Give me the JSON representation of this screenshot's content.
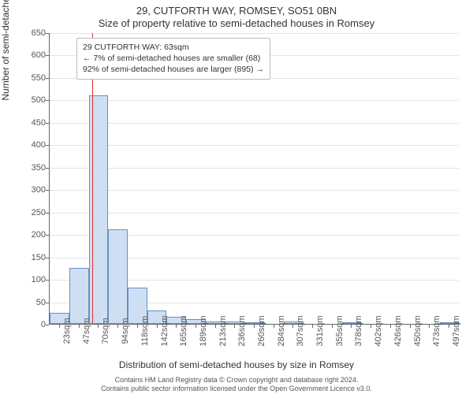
{
  "title_line1": "29, CUTFORTH WAY, ROMSEY, SO51 0BN",
  "title_line2": "Size of property relative to semi-detached houses in Romsey",
  "ylabel": "Number of semi-detached properties",
  "xlabel": "Distribution of semi-detached houses by size in Romsey",
  "footer_line1": "Contains HM Land Registry data © Crown copyright and database right 2024.",
  "footer_line2": "Contains public sector information licensed under the Open Government Licence v3.0.",
  "callout": {
    "line1": "29 CUTFORTH WAY: 63sqm",
    "line2": "← 7% of semi-detached houses are smaller (68)",
    "line3": "92% of semi-detached houses are larger (895) →"
  },
  "chart": {
    "type": "histogram",
    "background_color": "#ffffff",
    "grid_color": "#e5e5e5",
    "axis_color": "#666666",
    "bar_fill": "#cfdff3",
    "bar_border": "#6a8fc0",
    "marker_color": "#e03030",
    "marker_value": 63,
    "title_fontsize": 13,
    "label_fontsize": 12,
    "tick_fontsize": 11,
    "footer_fontsize": 9,
    "xlim": [
      11,
      509
    ],
    "ylim": [
      0,
      650
    ],
    "ytick_step": 50,
    "xticks": [
      23,
      47,
      70,
      94,
      118,
      142,
      165,
      189,
      213,
      236,
      260,
      284,
      307,
      331,
      355,
      378,
      402,
      426,
      450,
      473,
      497
    ],
    "xtick_suffix": "sqm",
    "bars": [
      {
        "x0": 11,
        "x1": 35,
        "y": 25
      },
      {
        "x0": 35,
        "x1": 59,
        "y": 125
      },
      {
        "x0": 59,
        "x1": 82,
        "y": 510
      },
      {
        "x0": 82,
        "x1": 106,
        "y": 210
      },
      {
        "x0": 106,
        "x1": 130,
        "y": 80
      },
      {
        "x0": 130,
        "x1": 153,
        "y": 30
      },
      {
        "x0": 153,
        "x1": 177,
        "y": 15
      },
      {
        "x0": 177,
        "x1": 201,
        "y": 10
      },
      {
        "x0": 201,
        "x1": 224,
        "y": 5
      },
      {
        "x0": 224,
        "x1": 248,
        "y": 5
      },
      {
        "x0": 248,
        "x1": 272,
        "y": 3
      },
      {
        "x0": 272,
        "x1": 295,
        "y": 0
      },
      {
        "x0": 295,
        "x1": 319,
        "y": 5
      },
      {
        "x0": 319,
        "x1": 343,
        "y": 0
      },
      {
        "x0": 343,
        "x1": 366,
        "y": 0
      },
      {
        "x0": 366,
        "x1": 390,
        "y": 3
      },
      {
        "x0": 390,
        "x1": 414,
        "y": 0
      },
      {
        "x0": 414,
        "x1": 437,
        "y": 0
      },
      {
        "x0": 437,
        "x1": 461,
        "y": 0
      },
      {
        "x0": 461,
        "x1": 485,
        "y": 0
      },
      {
        "x0": 485,
        "x1": 509,
        "y": 3
      }
    ]
  }
}
